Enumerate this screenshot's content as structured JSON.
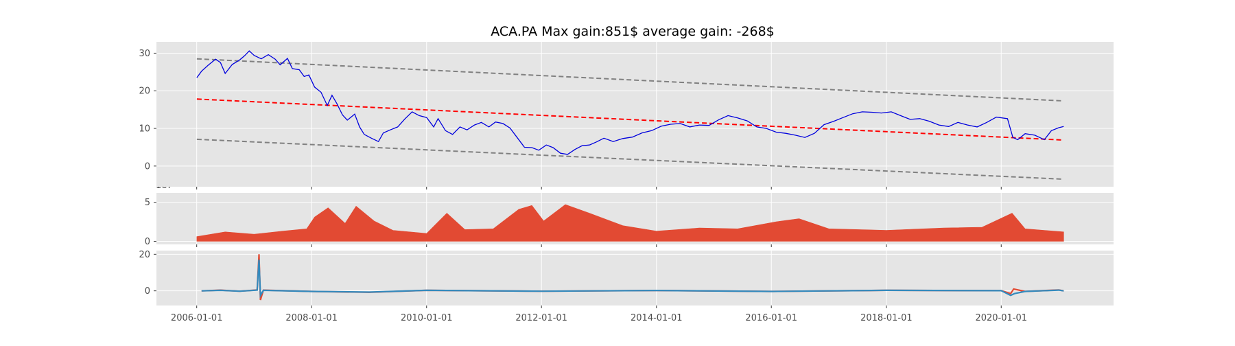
{
  "chart_data": [
    {
      "type": "line",
      "title": "ACA.PA Max gain:851$  average gain: -268$",
      "xlabel": "",
      "ylabel": "",
      "x_range": [
        "2005-04-20",
        "2021-12-15"
      ],
      "ylim": [
        -5.5,
        33
      ],
      "yticks": [
        0,
        10,
        20,
        30
      ],
      "grid": true,
      "background": "#e5e5e5",
      "series": [
        {
          "color": "#0000dd",
          "points": [
            [
              "2006-01-02",
              23.5
            ],
            [
              "2006-02-01",
              25.2
            ],
            [
              "2006-03-15",
              26.8
            ],
            [
              "2006-05-01",
              28.4
            ],
            [
              "2006-06-01",
              27.5
            ],
            [
              "2006-07-01",
              24.6
            ],
            [
              "2006-08-15",
              27.0
            ],
            [
              "2006-10-01",
              28.2
            ],
            [
              "2006-11-01",
              29.3
            ],
            [
              "2006-12-01",
              30.6
            ],
            [
              "2007-01-01",
              29.4
            ],
            [
              "2007-02-15",
              28.5
            ],
            [
              "2007-04-01",
              29.6
            ],
            [
              "2007-05-15",
              28.4
            ],
            [
              "2007-06-15",
              26.9
            ],
            [
              "2007-08-01",
              28.6
            ],
            [
              "2007-09-01",
              25.9
            ],
            [
              "2007-10-15",
              25.6
            ],
            [
              "2007-11-15",
              23.8
            ],
            [
              "2007-12-15",
              24.2
            ],
            [
              "2008-01-20",
              21.0
            ],
            [
              "2008-03-01",
              19.6
            ],
            [
              "2008-04-10",
              16.1
            ],
            [
              "2008-05-10",
              18.8
            ],
            [
              "2008-06-10",
              16.6
            ],
            [
              "2008-07-15",
              13.6
            ],
            [
              "2008-08-15",
              12.2
            ],
            [
              "2008-10-01",
              13.8
            ],
            [
              "2008-11-01",
              10.4
            ],
            [
              "2008-12-01",
              8.4
            ],
            [
              "2009-01-15",
              7.4
            ],
            [
              "2009-03-01",
              6.5
            ],
            [
              "2009-04-01",
              8.8
            ],
            [
              "2009-05-15",
              9.6
            ],
            [
              "2009-07-01",
              10.4
            ],
            [
              "2009-08-15",
              12.5
            ],
            [
              "2009-10-01",
              14.4
            ],
            [
              "2009-11-15",
              13.4
            ],
            [
              "2010-01-01",
              12.9
            ],
            [
              "2010-02-15",
              10.4
            ],
            [
              "2010-03-15",
              12.6
            ],
            [
              "2010-05-01",
              9.4
            ],
            [
              "2010-06-15",
              8.4
            ],
            [
              "2010-08-01",
              10.4
            ],
            [
              "2010-09-15",
              9.6
            ],
            [
              "2010-11-01",
              10.9
            ],
            [
              "2010-12-15",
              11.6
            ],
            [
              "2011-02-01",
              10.4
            ],
            [
              "2011-03-15",
              11.7
            ],
            [
              "2011-05-01",
              11.3
            ],
            [
              "2011-06-15",
              10.1
            ],
            [
              "2011-08-01",
              7.5
            ],
            [
              "2011-09-15",
              5.0
            ],
            [
              "2011-11-01",
              4.9
            ],
            [
              "2011-12-15",
              4.2
            ],
            [
              "2012-02-01",
              5.6
            ],
            [
              "2012-03-15",
              4.9
            ],
            [
              "2012-05-01",
              3.4
            ],
            [
              "2012-06-15",
              3.1
            ],
            [
              "2012-08-01",
              4.4
            ],
            [
              "2012-09-15",
              5.4
            ],
            [
              "2012-11-01",
              5.6
            ],
            [
              "2012-12-15",
              6.4
            ],
            [
              "2013-02-01",
              7.4
            ],
            [
              "2013-04-01",
              6.5
            ],
            [
              "2013-06-01",
              7.3
            ],
            [
              "2013-08-01",
              7.7
            ],
            [
              "2013-10-01",
              8.8
            ],
            [
              "2013-12-01",
              9.4
            ],
            [
              "2014-02-01",
              10.6
            ],
            [
              "2014-04-01",
              11.1
            ],
            [
              "2014-06-01",
              11.3
            ],
            [
              "2014-08-01",
              10.4
            ],
            [
              "2014-10-01",
              10.9
            ],
            [
              "2014-12-01",
              10.8
            ],
            [
              "2015-02-01",
              12.3
            ],
            [
              "2015-04-01",
              13.4
            ],
            [
              "2015-06-01",
              12.8
            ],
            [
              "2015-08-01",
              12.0
            ],
            [
              "2015-10-01",
              10.4
            ],
            [
              "2015-12-01",
              10.0
            ],
            [
              "2016-02-01",
              9.0
            ],
            [
              "2016-04-01",
              8.7
            ],
            [
              "2016-06-01",
              8.2
            ],
            [
              "2016-08-01",
              7.6
            ],
            [
              "2016-10-01",
              8.7
            ],
            [
              "2016-12-01",
              11.0
            ],
            [
              "2017-02-01",
              11.9
            ],
            [
              "2017-04-01",
              12.9
            ],
            [
              "2017-06-01",
              13.9
            ],
            [
              "2017-08-01",
              14.4
            ],
            [
              "2017-10-01",
              14.3
            ],
            [
              "2017-12-01",
              14.1
            ],
            [
              "2018-02-01",
              14.4
            ],
            [
              "2018-04-01",
              13.4
            ],
            [
              "2018-06-01",
              12.4
            ],
            [
              "2018-08-01",
              12.6
            ],
            [
              "2018-10-01",
              11.9
            ],
            [
              "2018-12-01",
              10.9
            ],
            [
              "2019-02-01",
              10.5
            ],
            [
              "2019-04-01",
              11.6
            ],
            [
              "2019-06-01",
              10.9
            ],
            [
              "2019-08-01",
              10.4
            ],
            [
              "2019-10-01",
              11.6
            ],
            [
              "2019-12-01",
              13.0
            ],
            [
              "2020-02-10",
              12.6
            ],
            [
              "2020-03-15",
              7.6
            ],
            [
              "2020-04-15",
              7.0
            ],
            [
              "2020-06-01",
              8.6
            ],
            [
              "2020-08-01",
              8.2
            ],
            [
              "2020-10-01",
              7.0
            ],
            [
              "2020-11-15",
              9.4
            ],
            [
              "2021-01-01",
              10.2
            ],
            [
              "2021-02-01",
              10.5
            ]
          ]
        },
        {
          "style": "dashed",
          "color": "#ff0000",
          "points": [
            [
              "2006-01-02",
              17.8
            ],
            [
              "2021-02-01",
              6.9
            ]
          ]
        },
        {
          "style": "dashed",
          "color": "#808080",
          "points": [
            [
              "2006-01-02",
              28.5
            ],
            [
              "2021-02-01",
              17.3
            ]
          ]
        },
        {
          "style": "dashed",
          "color": "#808080",
          "points": [
            [
              "2006-01-02",
              7.1
            ],
            [
              "2021-02-01",
              -3.5
            ]
          ]
        }
      ]
    },
    {
      "type": "area",
      "offset_label": "1e7",
      "ylim": [
        -0.4,
        6.2
      ],
      "yticks": [
        0,
        5
      ],
      "color": "#e24a33",
      "grid": true,
      "envelope": [
        [
          "2006-01-02",
          0.6
        ],
        [
          "2006-07-01",
          1.2
        ],
        [
          "2007-01-01",
          0.9
        ],
        [
          "2007-07-01",
          1.3
        ],
        [
          "2007-12-01",
          1.6
        ],
        [
          "2008-01-20",
          3.1
        ],
        [
          "2008-04-15",
          4.3
        ],
        [
          "2008-08-01",
          2.3
        ],
        [
          "2008-10-10",
          4.5
        ],
        [
          "2009-02-01",
          2.6
        ],
        [
          "2009-06-01",
          1.4
        ],
        [
          "2010-01-01",
          1.0
        ],
        [
          "2010-05-10",
          3.6
        ],
        [
          "2010-09-01",
          1.5
        ],
        [
          "2011-03-01",
          1.6
        ],
        [
          "2011-08-10",
          4.1
        ],
        [
          "2011-11-01",
          4.6
        ],
        [
          "2012-01-15",
          2.6
        ],
        [
          "2012-06-01",
          4.7
        ],
        [
          "2012-11-01",
          3.6
        ],
        [
          "2013-06-01",
          2.0
        ],
        [
          "2014-01-01",
          1.3
        ],
        [
          "2014-10-01",
          1.7
        ],
        [
          "2015-06-01",
          1.6
        ],
        [
          "2016-02-01",
          2.5
        ],
        [
          "2016-06-25",
          2.9
        ],
        [
          "2017-01-01",
          1.6
        ],
        [
          "2018-01-01",
          1.4
        ],
        [
          "2019-01-01",
          1.7
        ],
        [
          "2019-09-01",
          1.8
        ],
        [
          "2020-03-10",
          3.6
        ],
        [
          "2020-06-01",
          1.6
        ],
        [
          "2021-02-01",
          1.2
        ]
      ]
    },
    {
      "type": "line",
      "ylim": [
        -8,
        22
      ],
      "yticks": [
        0,
        20
      ],
      "grid": true,
      "xticks": [
        "2006-01-01",
        "2008-01-01",
        "2010-01-01",
        "2012-01-01",
        "2014-01-01",
        "2016-01-01",
        "2018-01-01",
        "2020-01-01"
      ],
      "series": [
        {
          "color": "#e24a33",
          "points": [
            [
              "2006-02-01",
              0.0
            ],
            [
              "2006-06-01",
              0.4
            ],
            [
              "2006-10-01",
              -0.2
            ],
            [
              "2007-01-20",
              0.5
            ],
            [
              "2007-02-01",
              20.0
            ],
            [
              "2007-02-10",
              -5.0
            ],
            [
              "2007-03-01",
              0.4
            ],
            [
              "2008-01-01",
              -0.3
            ],
            [
              "2009-01-01",
              -0.8
            ],
            [
              "2010-01-01",
              0.3
            ],
            [
              "2012-01-01",
              -0.2
            ],
            [
              "2014-01-01",
              0.2
            ],
            [
              "2016-01-01",
              -0.3
            ],
            [
              "2018-01-01",
              0.3
            ],
            [
              "2020-01-01",
              0.1
            ],
            [
              "2020-03-01",
              -1.5
            ],
            [
              "2020-03-20",
              1.0
            ],
            [
              "2020-06-01",
              -0.3
            ],
            [
              "2021-01-01",
              0.5
            ],
            [
              "2021-02-01",
              0.0
            ]
          ]
        },
        {
          "color": "#348abd",
          "points": [
            [
              "2006-02-01",
              0.0
            ],
            [
              "2006-06-01",
              0.3
            ],
            [
              "2006-10-01",
              -0.2
            ],
            [
              "2007-01-20",
              0.4
            ],
            [
              "2007-02-01",
              17.0
            ],
            [
              "2007-02-10",
              -2.5
            ],
            [
              "2007-03-01",
              0.3
            ],
            [
              "2008-01-01",
              -0.3
            ],
            [
              "2009-01-01",
              -0.7
            ],
            [
              "2010-01-01",
              0.3
            ],
            [
              "2012-01-01",
              -0.2
            ],
            [
              "2014-01-01",
              0.2
            ],
            [
              "2016-01-01",
              -0.3
            ],
            [
              "2018-01-01",
              0.3
            ],
            [
              "2020-01-01",
              0.1
            ],
            [
              "2020-03-01",
              -2.5
            ],
            [
              "2020-03-25",
              -1.5
            ],
            [
              "2020-06-01",
              -0.3
            ],
            [
              "2021-01-01",
              0.4
            ],
            [
              "2021-02-01",
              0.0
            ]
          ]
        }
      ]
    }
  ]
}
